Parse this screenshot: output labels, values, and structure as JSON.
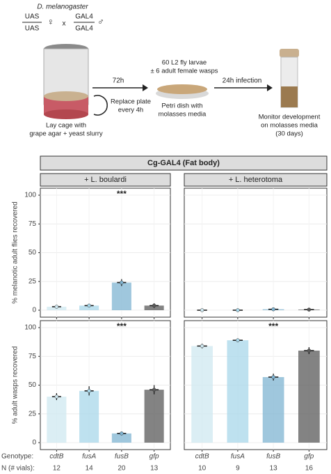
{
  "schematic": {
    "species": "D. melanogaster",
    "female_top": "UAS",
    "female_bottom": "UAS",
    "female_symbol": "♀",
    "cross": "x",
    "male_top": "GAL4",
    "male_bottom": "GAL4",
    "male_symbol": "♂",
    "cage_label": [
      "Lay cage with",
      "grape agar + yeast slurry"
    ],
    "step1_time": "72h",
    "step1_note": [
      "Replace plate",
      "every 4h"
    ],
    "dish_top": [
      "60 L2 fly larvae",
      "± 6 adult female wasps"
    ],
    "dish_label": [
      "Petri dish with",
      "molasses media"
    ],
    "step2_time": "24h infection",
    "vial_label": [
      "Monitor development",
      "on molasses media",
      "(30 days)"
    ]
  },
  "facet_header": "Cg-GAL4 (Fat body)",
  "genotype_row": {
    "genotype_label": "Genotype:",
    "n_label": "N (# vials):",
    "n_left": [
      12,
      14,
      20,
      13
    ],
    "n_right": [
      10,
      9,
      13,
      16
    ]
  },
  "chart_data": [
    {
      "type": "bar",
      "strip": "+ L. boulardi",
      "ylabel": "% melanotic adult flies recovered",
      "values": [
        3,
        4,
        24,
        4
      ],
      "errors": [
        0.8,
        1.2,
        3,
        2
      ],
      "colors": [
        "#cfe8f0",
        "#a8d7ea",
        "#7fb4d2",
        "#5a5a5a"
      ],
      "ylim": [
        0,
        100
      ],
      "yticks": [
        0,
        25,
        50,
        75,
        100
      ],
      "grid": true,
      "annotation": "***"
    },
    {
      "type": "bar",
      "strip": "+ L. heterotoma",
      "values": [
        0,
        0,
        0.8,
        0.5
      ],
      "errors": [
        0,
        0,
        0.5,
        0.3
      ],
      "colors": [
        "#cfe8f0",
        "#a8d7ea",
        "#7fb4d2",
        "#5a5a5a"
      ],
      "ylim": [
        0,
        100
      ],
      "yticks": [
        0,
        25,
        50,
        75,
        100
      ],
      "grid": true
    },
    {
      "type": "bar",
      "ylabel": "% adult wasps recovered",
      "categories": [
        "cdtB",
        "fusA",
        "fusB",
        "gfp"
      ],
      "values": [
        40,
        45,
        8,
        46
      ],
      "errors": [
        3,
        4,
        1.5,
        4
      ],
      "colors": [
        "#cfe8f0",
        "#a8d7ea",
        "#7fb4d2",
        "#5a5a5a"
      ],
      "ylim": [
        0,
        100
      ],
      "yticks": [
        0,
        25,
        50,
        75,
        100
      ],
      "grid": true,
      "annotation": "***"
    },
    {
      "type": "bar",
      "categories": [
        "cdtB",
        "fusA",
        "fusB",
        "gfp"
      ],
      "values": [
        84,
        89,
        57,
        80
      ],
      "errors": [
        2,
        1.5,
        3,
        3
      ],
      "colors": [
        "#cfe8f0",
        "#a8d7ea",
        "#7fb4d2",
        "#5a5a5a"
      ],
      "ylim": [
        0,
        100
      ],
      "yticks": [
        0,
        25,
        50,
        75,
        100
      ],
      "grid": true,
      "annotation": "***"
    }
  ]
}
